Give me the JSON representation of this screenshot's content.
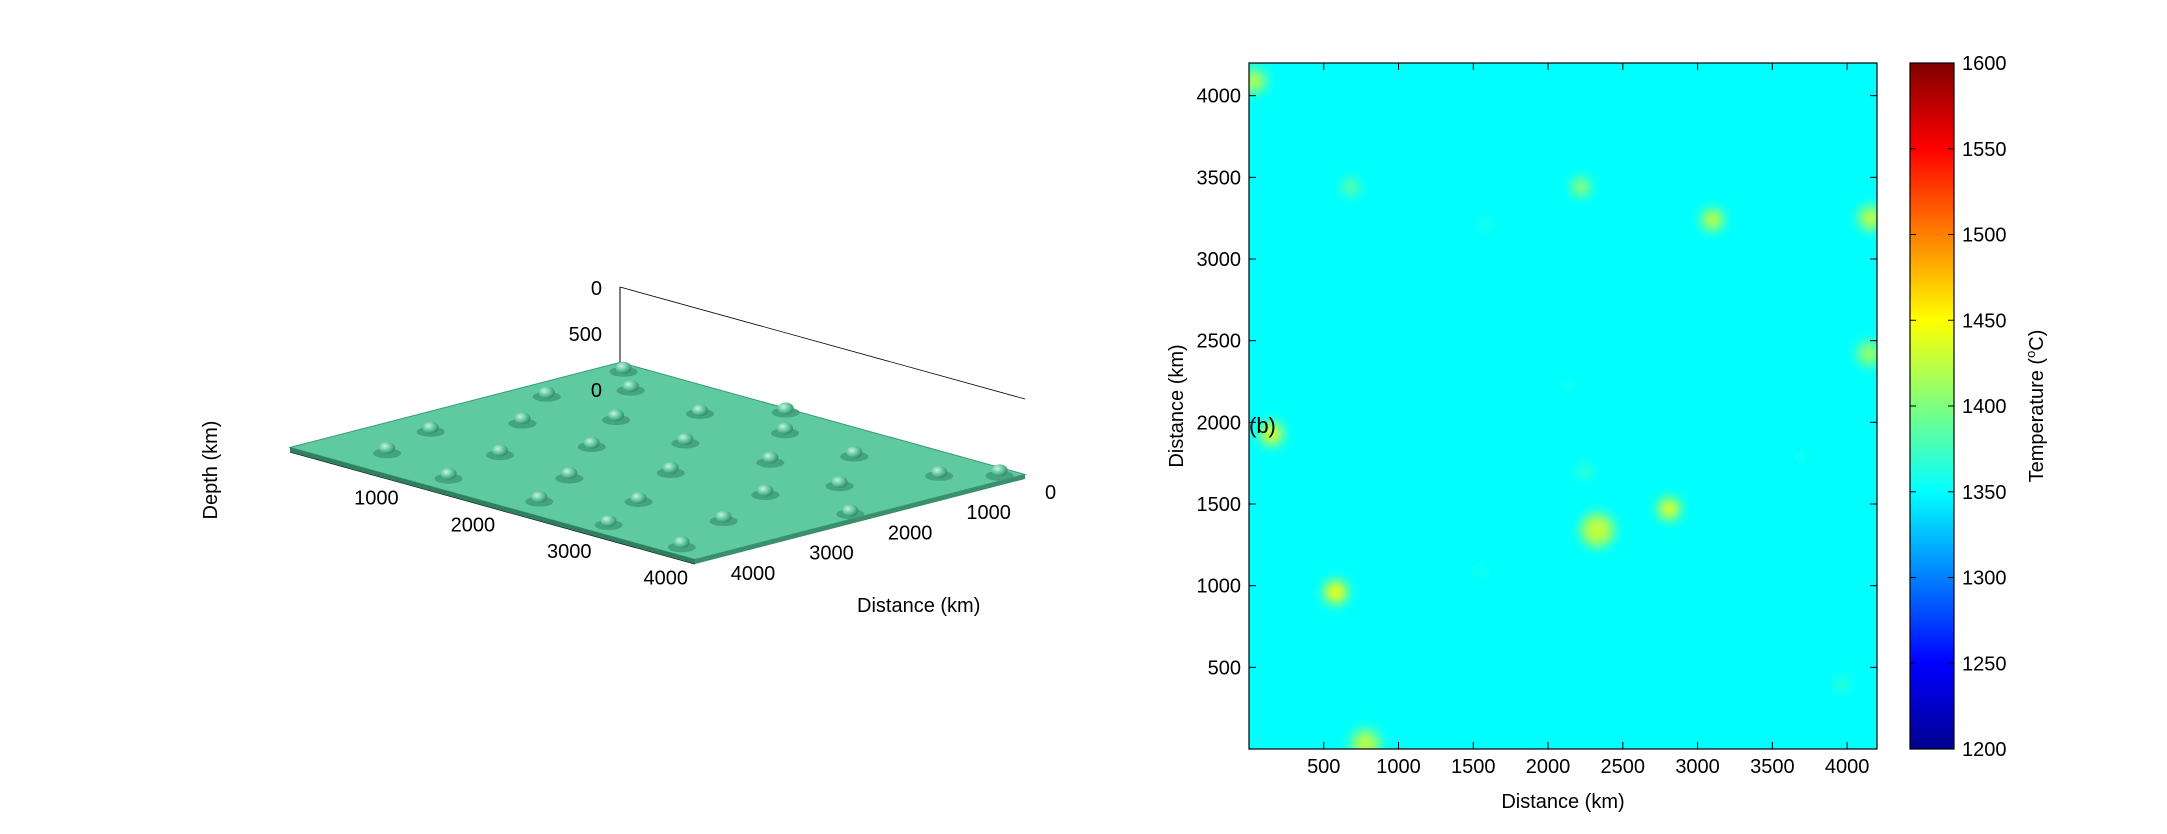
{
  "chart_data": [
    {
      "type": "surface3d",
      "xlabel": "Distance (km)",
      "zlabel": "Depth (km)",
      "x_ticks": [
        0,
        1000,
        2000,
        3000,
        4000
      ],
      "y_ticks": [
        1000,
        2000,
        3000,
        4000
      ],
      "z_ticks": [
        0,
        500,
        0
      ],
      "xlim": [
        0,
        4200
      ],
      "ylim": [
        0,
        4200
      ],
      "zlim": [
        0,
        700
      ],
      "surface_color": "#5fc9a0",
      "plumes": [
        {
          "x": 600,
          "y": 500,
          "h": 560
        },
        {
          "x": 1400,
          "y": 300,
          "h": 500
        },
        {
          "x": 2300,
          "y": 350,
          "h": 470
        },
        {
          "x": 3100,
          "y": 250,
          "h": 430
        },
        {
          "x": 3900,
          "y": 200,
          "h": 520
        },
        {
          "x": 400,
          "y": 1300,
          "h": 430
        },
        {
          "x": 1200,
          "y": 1200,
          "h": 480
        },
        {
          "x": 2000,
          "y": 1100,
          "h": 560
        },
        {
          "x": 2800,
          "y": 1000,
          "h": 400
        },
        {
          "x": 3600,
          "y": 1100,
          "h": 470
        },
        {
          "x": 700,
          "y": 2100,
          "h": 540
        },
        {
          "x": 1500,
          "y": 2000,
          "h": 420
        },
        {
          "x": 2400,
          "y": 1900,
          "h": 520
        },
        {
          "x": 3300,
          "y": 2000,
          "h": 450
        },
        {
          "x": 4100,
          "y": 2100,
          "h": 380
        },
        {
          "x": 300,
          "y": 2900,
          "h": 420
        },
        {
          "x": 1100,
          "y": 2800,
          "h": 500
        },
        {
          "x": 1900,
          "y": 2700,
          "h": 460
        },
        {
          "x": 2700,
          "y": 2800,
          "h": 540
        },
        {
          "x": 3500,
          "y": 2700,
          "h": 420
        },
        {
          "x": 600,
          "y": 3600,
          "h": 460
        },
        {
          "x": 1400,
          "y": 3500,
          "h": 380
        },
        {
          "x": 2200,
          "y": 3600,
          "h": 500
        },
        {
          "x": 3000,
          "y": 3500,
          "h": 440
        },
        {
          "x": 3800,
          "y": 3600,
          "h": 400
        },
        {
          "x": 4100,
          "y": 4000,
          "h": 560
        },
        {
          "x": 200,
          "y": 4000,
          "h": 420
        },
        {
          "x": 1800,
          "y": 4100,
          "h": 400
        }
      ]
    },
    {
      "type": "heatmap",
      "panel_label": "(b)",
      "xlabel": "Distance (km)",
      "ylabel": "Distance (km)",
      "xlim": [
        0,
        4200
      ],
      "ylim": [
        0,
        4200
      ],
      "x_ticks": [
        500,
        1000,
        1500,
        2000,
        2500,
        3000,
        3500,
        4000
      ],
      "y_ticks": [
        500,
        1000,
        1500,
        2000,
        2500,
        3000,
        3500,
        4000
      ],
      "background_value": 1350,
      "colorbar": {
        "label": "Temperature (",
        "label_sup": "o",
        "label_end": "C)",
        "min": 1200,
        "max": 1600,
        "ticks": [
          1200,
          1250,
          1300,
          1350,
          1400,
          1450,
          1500,
          1550,
          1600
        ]
      },
      "hotspots": [
        {
          "x": 30,
          "y": 4090,
          "value": 1420,
          "r": 80
        },
        {
          "x": 680,
          "y": 3440,
          "value": 1395,
          "r": 55
        },
        {
          "x": 2220,
          "y": 3440,
          "value": 1415,
          "r": 60
        },
        {
          "x": 3100,
          "y": 3240,
          "value": 1430,
          "r": 70
        },
        {
          "x": 4160,
          "y": 3250,
          "value": 1425,
          "r": 80
        },
        {
          "x": 1580,
          "y": 3210,
          "value": 1365,
          "r": 40
        },
        {
          "x": 4150,
          "y": 2420,
          "value": 1410,
          "r": 80
        },
        {
          "x": 2140,
          "y": 2230,
          "value": 1360,
          "r": 35
        },
        {
          "x": 150,
          "y": 1930,
          "value": 1440,
          "r": 75
        },
        {
          "x": 2250,
          "y": 1700,
          "value": 1380,
          "r": 45
        },
        {
          "x": 3700,
          "y": 1790,
          "value": 1360,
          "r": 35
        },
        {
          "x": 2810,
          "y": 1470,
          "value": 1445,
          "r": 70
        },
        {
          "x": 2330,
          "y": 1340,
          "value": 1425,
          "r": 110
        },
        {
          "x": 1550,
          "y": 1090,
          "value": 1360,
          "r": 40
        },
        {
          "x": 580,
          "y": 960,
          "value": 1450,
          "r": 75
        },
        {
          "x": 3970,
          "y": 400,
          "value": 1375,
          "r": 45
        },
        {
          "x": 780,
          "y": 30,
          "value": 1420,
          "r": 95
        }
      ]
    }
  ]
}
